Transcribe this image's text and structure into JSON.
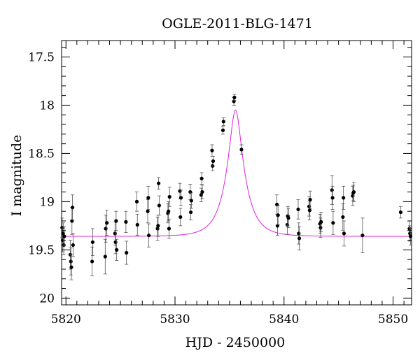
{
  "chart_data": {
    "type": "scatter",
    "title": "OGLE-2011-BLG-1471",
    "xlabel": "HJD - 2450000",
    "ylabel": "I magnitude",
    "xlim": [
      5819.6,
      5851.7
    ],
    "ylim": [
      20.07,
      17.33
    ],
    "y_inverted": true,
    "x_ticks": [
      5820,
      5830,
      5840,
      5850
    ],
    "y_ticks": [
      17.5,
      18,
      18.5,
      19,
      19.5,
      20
    ],
    "y_tick_labels": [
      "17.5",
      "18",
      "18.5",
      "19",
      "19.5",
      "20"
    ],
    "grid": false,
    "legend": "none",
    "model_color": "#e020e0",
    "point_color": "#000000",
    "model": {
      "baseline_mag": 19.36,
      "peak_mag": 18.05,
      "t0": 5835.55,
      "tE": 1.6
    },
    "series": [
      {
        "points": [
          [
            5819.65,
            19.27,
            0.1
          ],
          [
            5819.7,
            19.4,
            0.12
          ],
          [
            5819.75,
            19.33,
            0.11
          ],
          [
            5819.8,
            19.45,
            0.1
          ],
          [
            5819.85,
            19.36,
            0.1
          ],
          [
            5820.4,
            19.55,
            0.15
          ],
          [
            5820.45,
            19.62,
            0.14
          ],
          [
            5820.5,
            19.68,
            0.13
          ],
          [
            5820.55,
            19.2,
            0.14
          ],
          [
            5820.6,
            19.06,
            0.13
          ],
          [
            5820.65,
            19.45,
            0.12
          ],
          [
            5822.4,
            19.62,
            0.15
          ],
          [
            5822.45,
            19.42,
            0.14
          ],
          [
            5823.6,
            19.57,
            0.18
          ],
          [
            5823.65,
            19.28,
            0.14
          ],
          [
            5823.75,
            19.22,
            0.13
          ],
          [
            5824.5,
            19.33,
            0.12
          ],
          [
            5824.55,
            19.42,
            0.12
          ],
          [
            5824.6,
            19.2,
            0.1
          ],
          [
            5824.65,
            19.5,
            0.11
          ],
          [
            5825.5,
            19.21,
            0.11
          ],
          [
            5825.55,
            19.53,
            0.12
          ],
          [
            5826.5,
            19.0,
            0.1
          ],
          [
            5826.55,
            19.24,
            0.11
          ],
          [
            5827.5,
            19.1,
            0.12
          ],
          [
            5827.55,
            18.96,
            0.12
          ],
          [
            5827.6,
            19.35,
            0.12
          ],
          [
            5828.4,
            19.28,
            0.12
          ],
          [
            5828.45,
            19.25,
            0.11
          ],
          [
            5828.5,
            18.81,
            0.06
          ],
          [
            5828.55,
            19.04,
            0.1
          ],
          [
            5829.35,
            19.12,
            0.1
          ],
          [
            5829.4,
            19.1,
            0.1
          ],
          [
            5829.45,
            19.28,
            0.1
          ],
          [
            5829.5,
            18.95,
            0.1
          ],
          [
            5830.45,
            18.89,
            0.08
          ],
          [
            5830.5,
            19.16,
            0.09
          ],
          [
            5830.55,
            18.96,
            0.08
          ],
          [
            5831.4,
            18.9,
            0.08
          ],
          [
            5831.45,
            19.11,
            0.08
          ],
          [
            5831.5,
            18.99,
            0.08
          ],
          [
            5832.4,
            18.93,
            0.07
          ],
          [
            5832.45,
            18.76,
            0.06
          ],
          [
            5832.5,
            18.9,
            0.07
          ],
          [
            5833.4,
            18.47,
            0.06
          ],
          [
            5833.45,
            18.63,
            0.05
          ],
          [
            5833.5,
            18.58,
            0.05
          ],
          [
            5834.4,
            18.26,
            0.04
          ],
          [
            5834.45,
            18.17,
            0.04
          ],
          [
            5835.4,
            17.96,
            0.04
          ],
          [
            5835.45,
            17.92,
            0.03
          ],
          [
            5836.1,
            18.46,
            0.05
          ],
          [
            5839.35,
            19.03,
            0.1
          ],
          [
            5839.4,
            19.25,
            0.1
          ],
          [
            5839.45,
            19.14,
            0.1
          ],
          [
            5840.3,
            19.24,
            0.1
          ],
          [
            5840.35,
            19.15,
            0.1
          ],
          [
            5840.4,
            19.17,
            0.1
          ],
          [
            5841.3,
            19.08,
            0.1
          ],
          [
            5841.35,
            19.33,
            0.11
          ],
          [
            5841.4,
            19.38,
            0.12
          ],
          [
            5842.3,
            19.05,
            0.1
          ],
          [
            5842.35,
            19.09,
            0.1
          ],
          [
            5842.4,
            18.98,
            0.09
          ],
          [
            5843.3,
            19.23,
            0.1
          ],
          [
            5843.35,
            19.27,
            0.1
          ],
          [
            5843.4,
            19.21,
            0.1
          ],
          [
            5844.4,
            18.88,
            0.15
          ],
          [
            5844.45,
            18.96,
            0.12
          ],
          [
            5844.5,
            19.22,
            0.12
          ],
          [
            5845.4,
            19.16,
            0.14
          ],
          [
            5845.45,
            18.96,
            0.12
          ],
          [
            5845.5,
            19.33,
            0.13
          ],
          [
            5846.3,
            18.94,
            0.1
          ],
          [
            5846.35,
            18.91,
            0.08
          ],
          [
            5846.4,
            18.9,
            0.1
          ],
          [
            5847.2,
            19.35,
            0.18
          ],
          [
            5850.7,
            19.11,
            0.06
          ],
          [
            5851.5,
            19.28,
            0.08
          ],
          [
            5851.55,
            19.33,
            0.08
          ],
          [
            5851.6,
            19.36,
            0.09
          ]
        ]
      }
    ]
  }
}
